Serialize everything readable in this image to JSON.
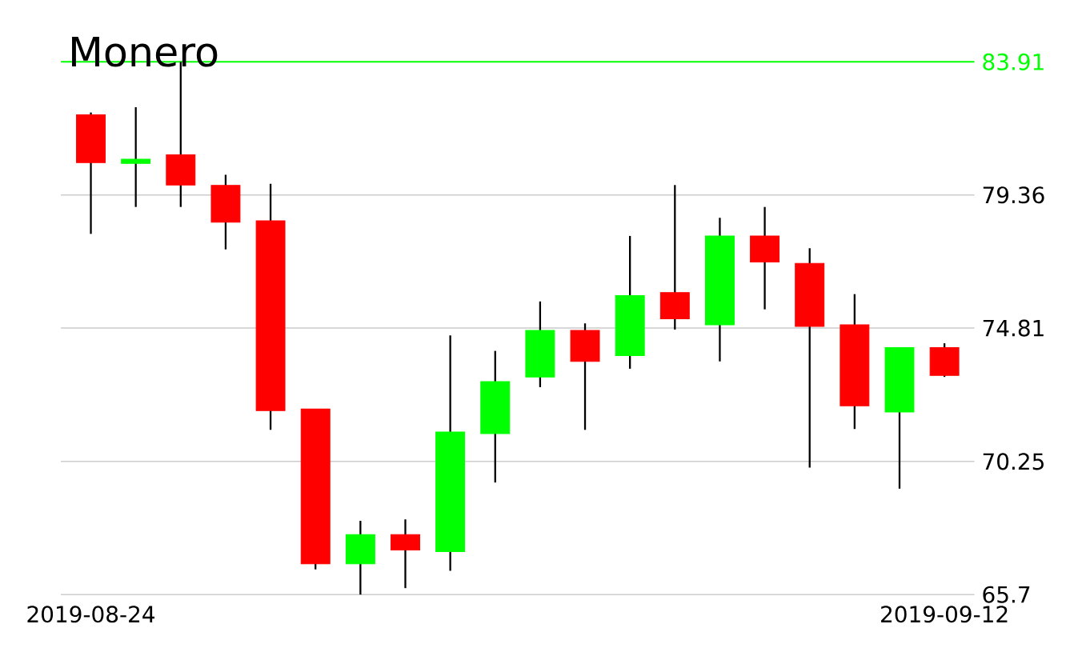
{
  "chart_data": {
    "type": "candlestick",
    "title": "Monero",
    "x": [
      "2019-08-24",
      "2019-08-25",
      "2019-08-26",
      "2019-08-27",
      "2019-08-28",
      "2019-08-29",
      "2019-08-30",
      "2019-08-31",
      "2019-09-01",
      "2019-09-02",
      "2019-09-03",
      "2019-09-04",
      "2019-09-05",
      "2019-09-06",
      "2019-09-07",
      "2019-09-08",
      "2019-09-09",
      "2019-09-10",
      "2019-09-11",
      "2019-09-12"
    ],
    "ohlc": [
      [
        82.1,
        82.18,
        78.03,
        80.47
      ],
      [
        80.44,
        82.36,
        78.95,
        80.58
      ],
      [
        80.73,
        83.91,
        78.95,
        79.7
      ],
      [
        79.69,
        80.05,
        77.5,
        78.43
      ],
      [
        78.48,
        79.74,
        71.33,
        71.99
      ],
      [
        72.04,
        72.04,
        66.56,
        66.75
      ],
      [
        66.75,
        68.22,
        65.7,
        67.75
      ],
      [
        67.75,
        68.27,
        65.92,
        67.22
      ],
      [
        67.17,
        74.56,
        66.51,
        71.26
      ],
      [
        71.2,
        74.03,
        69.53,
        72.98
      ],
      [
        73.14,
        75.72,
        72.79,
        74.73
      ],
      [
        74.73,
        74.97,
        71.33,
        73.67
      ],
      [
        73.87,
        77.96,
        73.42,
        75.92
      ],
      [
        76.02,
        79.7,
        74.76,
        75.13
      ],
      [
        74.92,
        78.58,
        73.67,
        77.96
      ],
      [
        77.96,
        78.95,
        75.45,
        77.07
      ],
      [
        77.02,
        77.54,
        70.04,
        74.87
      ],
      [
        74.92,
        75.97,
        71.36,
        72.15
      ],
      [
        71.94,
        74.14,
        69.32,
        74.14
      ],
      [
        74.14,
        74.29,
        73.14,
        73.19
      ]
    ],
    "colors": [
      "#ff0000",
      "#00ff00",
      "#ff0000",
      "#ff0000",
      "#ff0000",
      "#ff0000",
      "#00ff00",
      "#ff0000",
      "#00ff00",
      "#00ff00",
      "#00ff00",
      "#ff0000",
      "#00ff00",
      "#ff0000",
      "#00ff00",
      "#ff0000",
      "#ff0000",
      "#ff0000",
      "#00ff00",
      "#ff0000"
    ],
    "xlim": [
      "2019-08-23T08:00",
      "2019-09-12T16:00"
    ],
    "xticks": [
      {
        "value": "2019-08-24",
        "label": "2019-08-24"
      },
      {
        "value": "2019-09-12",
        "label": "2019-09-12"
      }
    ],
    "ylim": [
      65.7,
      83.91
    ],
    "yticks": [
      65.7,
      70.25,
      74.81,
      79.36
    ],
    "grid": "y",
    "ref_lines": [
      {
        "axis": "y",
        "value": 83.91,
        "label": "83.91",
        "color": "#00ff00"
      }
    ]
  }
}
